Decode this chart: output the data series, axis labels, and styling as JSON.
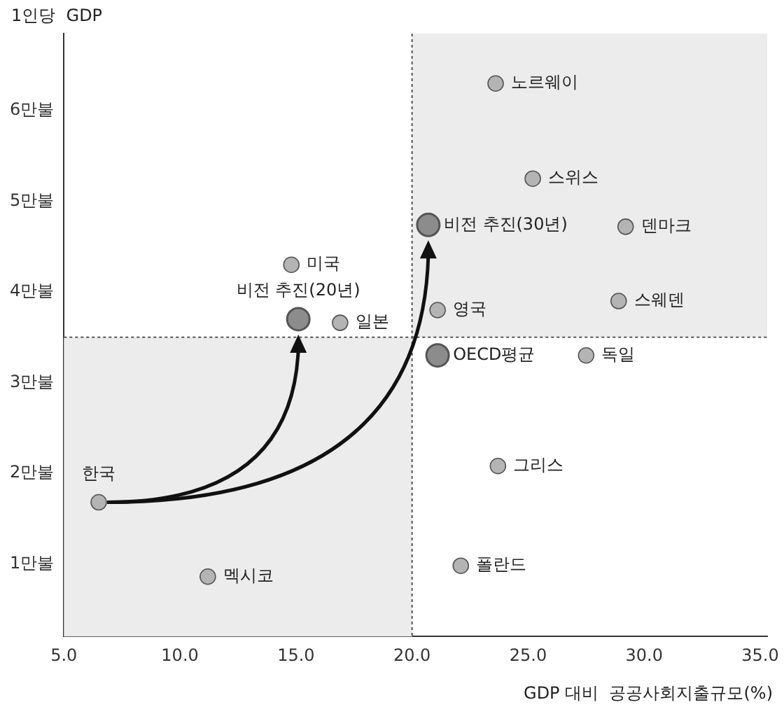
{
  "chart_data": {
    "type": "scatter",
    "xlabel": "GDP 대비  공공사회지출규모(%)",
    "ylabel": "1인당  GDP",
    "xlim": [
      5,
      35.3
    ],
    "ylim": [
      0.2,
      6.85
    ],
    "xticks": [
      {
        "value": 5,
        "label": "5.0"
      },
      {
        "value": 10,
        "label": "10.0"
      },
      {
        "value": 15,
        "label": "15.0"
      },
      {
        "value": 20,
        "label": "20.0"
      },
      {
        "value": 25,
        "label": "25.0"
      },
      {
        "value": 30,
        "label": "30.0"
      },
      {
        "value": 35,
        "label": "35.0"
      }
    ],
    "yticks": [
      {
        "value": 1,
        "label": "1만불"
      },
      {
        "value": 2,
        "label": "2만불"
      },
      {
        "value": 3,
        "label": "3만불"
      },
      {
        "value": 4,
        "label": "4만불"
      },
      {
        "value": 5,
        "label": "5만불"
      },
      {
        "value": 6,
        "label": "6만불"
      }
    ],
    "marker": "circle",
    "series": [
      {
        "color": "#b4b4b4",
        "x": [
          6.5,
          11.2,
          14.8,
          16.9,
          23.6,
          25.2,
          29.2,
          28.9,
          21.1,
          27.5,
          23.7,
          22.1
        ],
        "values": [
          1.68,
          0.86,
          4.3,
          3.66,
          6.3,
          5.25,
          4.72,
          3.9,
          3.8,
          3.3,
          2.08,
          0.98
        ]
      },
      {
        "color": "#8c8c8c",
        "x": [
          15.1,
          20.7,
          21.1
        ],
        "values": [
          3.7,
          4.74,
          3.3
        ]
      }
    ],
    "bands": [
      {
        "axis": "x",
        "from": 5,
        "to": 20,
        "color": "#ececec"
      },
      {
        "axis": "x",
        "from": 20,
        "to": 35.3,
        "color": "#ececec"
      }
    ],
    "ref_lines": [
      {
        "axis": "x",
        "value": 20,
        "color": "#555555",
        "line_style": "dotted"
      },
      {
        "axis": "y",
        "value": 3.5,
        "color": "#555555",
        "line_style": "dotted"
      }
    ],
    "annotations": [
      {
        "text": "한국",
        "x": 6.5,
        "y": 1.68
      },
      {
        "text": "멕시코",
        "x": 11.2,
        "y": 0.86
      },
      {
        "text": "미국",
        "x": 14.8,
        "y": 4.3
      },
      {
        "text": "일본",
        "x": 16.9,
        "y": 3.66
      },
      {
        "text": "노르웨이",
        "x": 23.6,
        "y": 6.3
      },
      {
        "text": "스위스",
        "x": 25.2,
        "y": 5.25
      },
      {
        "text": "덴마크",
        "x": 29.2,
        "y": 4.72
      },
      {
        "text": "스웨덴",
        "x": 28.9,
        "y": 3.9
      },
      {
        "text": "영국",
        "x": 21.1,
        "y": 3.8
      },
      {
        "text": "독일",
        "x": 27.5,
        "y": 3.3
      },
      {
        "text": "그리스",
        "x": 23.7,
        "y": 2.08
      },
      {
        "text": "폴란드",
        "x": 22.1,
        "y": 0.98
      },
      {
        "text": "비전 추진(20년)",
        "x": 15.1,
        "y": 3.7
      },
      {
        "text": "비전 추진(30년)",
        "x": 20.7,
        "y": 4.74
      },
      {
        "text": "OECD평균",
        "x": 21.1,
        "y": 3.3
      }
    ]
  }
}
